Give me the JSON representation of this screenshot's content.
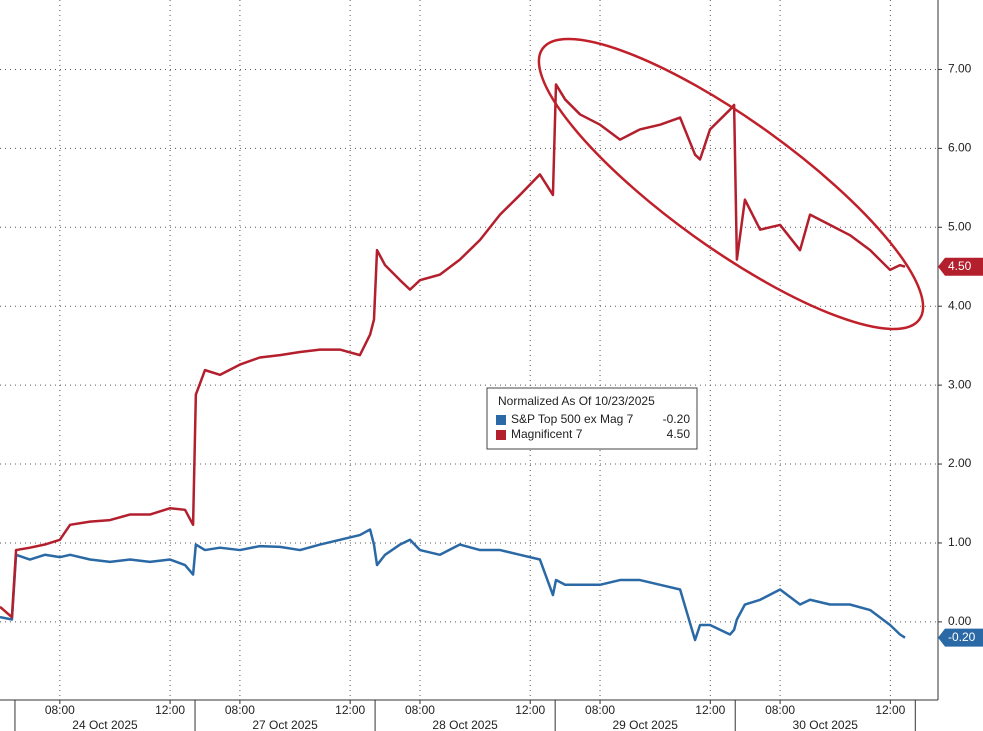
{
  "chart_data": {
    "type": "line",
    "legend_title": "Normalized As Of 10/23/2025",
    "x": [
      -0.54,
      -0.11,
      0.04,
      0.54,
      1.08,
      1.62,
      1.99,
      2.71,
      3.43,
      4.15,
      4.87,
      5.6,
      6.14,
      6.43,
      6.53,
      6.86,
      7.4,
      8.12,
      8.84,
      9.57,
      10.29,
      11.01,
      11.73,
      12.45,
      12.82,
      12.96,
      13.07,
      13.36,
      13.9,
      14.26,
      14.62,
      15.34,
      16.06,
      16.79,
      17.51,
      18.23,
      18.95,
      19.42,
      19.53,
      19.86,
      20.4,
      21.12,
      21.84,
      22.56,
      23.29,
      24.01,
      24.55,
      24.73,
      25.09,
      25.81,
      25.96,
      26.06,
      26.35,
      26.9,
      27.62,
      28.34,
      28.7,
      29.42,
      30.14,
      30.87,
      31.59,
      31.95,
      32.13
    ],
    "series": [
      {
        "name": "S&P Top 500 ex Mag 7",
        "color": "#2a69a6",
        "last_label": "-0.20",
        "values": [
          0.06,
          0.03,
          0.85,
          0.79,
          0.85,
          0.82,
          0.85,
          0.79,
          0.76,
          0.79,
          0.76,
          0.79,
          0.72,
          0.6,
          0.98,
          0.91,
          0.94,
          0.91,
          0.96,
          0.95,
          0.91,
          0.98,
          1.04,
          1.1,
          1.17,
          0.98,
          0.72,
          0.85,
          0.98,
          1.04,
          0.91,
          0.85,
          0.98,
          0.91,
          0.91,
          0.85,
          0.79,
          0.34,
          0.53,
          0.47,
          0.47,
          0.47,
          0.53,
          0.53,
          0.47,
          0.41,
          -0.23,
          -0.04,
          -0.04,
          -0.16,
          -0.1,
          0.03,
          0.22,
          0.28,
          0.41,
          0.22,
          0.28,
          0.22,
          0.22,
          0.15,
          -0.04,
          -0.16,
          -0.2
        ]
      },
      {
        "name": "Magnificent 7",
        "color": "#b31f2d",
        "last_label": "4.50",
        "values": [
          0.19,
          0.06,
          0.91,
          0.94,
          0.98,
          1.04,
          1.23,
          1.27,
          1.29,
          1.36,
          1.36,
          1.44,
          1.42,
          1.23,
          2.88,
          3.19,
          3.13,
          3.26,
          3.35,
          3.38,
          3.42,
          3.45,
          3.45,
          3.38,
          3.64,
          3.83,
          4.71,
          4.52,
          4.33,
          4.21,
          4.33,
          4.4,
          4.59,
          4.84,
          5.16,
          5.41,
          5.67,
          5.41,
          6.81,
          6.62,
          6.43,
          6.3,
          6.11,
          6.24,
          6.3,
          6.39,
          5.92,
          5.86,
          6.24,
          6.49,
          6.55,
          4.59,
          5.35,
          4.97,
          5.03,
          4.71,
          5.16,
          5.03,
          4.9,
          4.71,
          4.46,
          4.52,
          4.5
        ]
      }
    ],
    "xlim": [
      -0.54,
      33.32
    ],
    "xticks": [
      {
        "value": 1.62,
        "label": "08:00"
      },
      {
        "value": 5.6,
        "label": "12:00"
      },
      {
        "value": 8.12,
        "label": "08:00"
      },
      {
        "value": 12.1,
        "label": "12:00"
      },
      {
        "value": 14.62,
        "label": "08:00"
      },
      {
        "value": 18.6,
        "label": "12:00"
      },
      {
        "value": 21.12,
        "label": "08:00"
      },
      {
        "value": 25.1,
        "label": "12:00"
      },
      {
        "value": 27.62,
        "label": "08:00"
      },
      {
        "value": 31.6,
        "label": "12:00"
      }
    ],
    "day_breaks": [
      0,
      6.5,
      13,
      19.5,
      26,
      32.5
    ],
    "day_labels": [
      "24 Oct 2025",
      "27 Oct 2025",
      "28 Oct 2025",
      "29 Oct 2025",
      "30 Oct 2025"
    ],
    "ylim": [
      -0.99,
      7.88
    ],
    "yticks": [
      {
        "value": 0,
        "label": "0.00"
      },
      {
        "value": 1,
        "label": "1.00"
      },
      {
        "value": 2,
        "label": "2.00"
      },
      {
        "value": 3,
        "label": "3.00"
      },
      {
        "value": 4,
        "label": "4.00"
      },
      {
        "value": 5,
        "label": "5.00"
      },
      {
        "value": 6,
        "label": "6.00"
      },
      {
        "value": 7,
        "label": "7.00"
      }
    ],
    "grid": true
  }
}
